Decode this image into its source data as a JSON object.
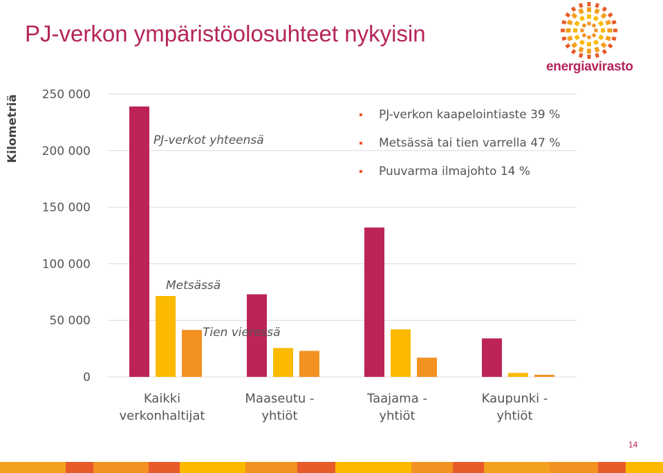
{
  "title": "PJ-verkon ympäristöolosuhteet nykyisin",
  "logo_text": "energiavirasto",
  "logo_icon": "sunburst-logo-icon",
  "page_number": "14",
  "bullets": [
    "PJ-verkon kaapelointiaste 39 %",
    "Metsässä tai tien varrella 47 %",
    "Puuvarma ilmajohto 14 %"
  ],
  "colors": {
    "primary": "#b5245a",
    "series1": "#bc2458",
    "series2": "#fbb900",
    "series3": "#f39121"
  },
  "chart_data": {
    "type": "bar",
    "ylabel": "Kilometriä",
    "xlabel": "",
    "ylim": [
      0,
      250000
    ],
    "yticks": [
      0,
      50000,
      100000,
      150000,
      200000,
      250000
    ],
    "ytick_labels": [
      "0",
      "50 000",
      "100 000",
      "150 000",
      "200 000",
      "250 000"
    ],
    "grid": true,
    "categories": [
      {
        "line1": "Kaikki",
        "line2": "verkonhaltijat"
      },
      {
        "line1": "Maaseutu -",
        "line2": "yhtiöt"
      },
      {
        "line1": "Taajama -",
        "line2": "yhtiöt"
      },
      {
        "line1": "Kaupunki -",
        "line2": "yhtiöt"
      }
    ],
    "series": [
      {
        "values": [
          239000,
          73000,
          132000,
          34000
        ]
      },
      {
        "values": [
          71500,
          25500,
          42000,
          3500
        ]
      },
      {
        "values": [
          41500,
          23000,
          17000,
          1800
        ]
      }
    ],
    "annotations": [
      {
        "text": "PJ-verkot yhteensä",
        "category": 0,
        "series": 0
      },
      {
        "text": "Metsässä",
        "category": 0,
        "series": 1
      },
      {
        "text": "Tien vieressä",
        "category": 0,
        "series": 2
      }
    ]
  }
}
